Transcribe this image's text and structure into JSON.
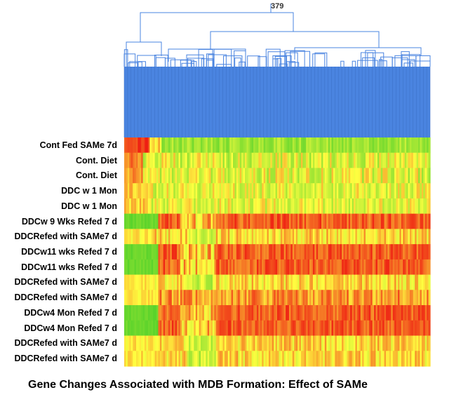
{
  "dendrogram": {
    "node_count_label": "379",
    "leaf_color": "#4a84e0",
    "line_color": "#4a84e0"
  },
  "heatmap": {
    "rows": [
      {
        "label": "Cont  Fed SAMe 7d",
        "profile": "cont_fed"
      },
      {
        "label": "Cont. Diet",
        "profile": "cont_diet"
      },
      {
        "label": "Cont. Diet",
        "profile": "cont_diet"
      },
      {
        "label": "DDC w 1 Mon",
        "profile": "ddc_1mon"
      },
      {
        "label": "DDC w 1 Mon",
        "profile": "ddc_1mon"
      },
      {
        "label": "DDCw 9 Wks Refed 7 d",
        "profile": "refed_high"
      },
      {
        "label": "DDCRefed with SAMe7 d",
        "profile": "same_refed"
      },
      {
        "label": "DDCw11 wks Refed 7 d",
        "profile": "refed_high"
      },
      {
        "label": "DDCw11 wks Refed 7 d",
        "profile": "refed_high"
      },
      {
        "label": "DDCRefed with SAMe7 d",
        "profile": "same_refed"
      },
      {
        "label": "DDCRefed with SAMe7 d",
        "profile": "refed_mid"
      },
      {
        "label": "DDCw4 Mon Refed 7 d",
        "profile": "refed_high"
      },
      {
        "label": "DDCw4 Mon Refed 7 d",
        "profile": "refed_high"
      },
      {
        "label": "DDCRefed with SAMe7 d",
        "profile": "same_refed"
      },
      {
        "label": "DDCRefed with SAMe7 d",
        "profile": "same_refed"
      }
    ],
    "color_scale": {
      "low": "#4fd02a",
      "mid": "#ffff40",
      "high": "#ee1a12"
    }
  },
  "caption": "Gene Changes Associated with MDB Formation: Effect of SAMe"
}
